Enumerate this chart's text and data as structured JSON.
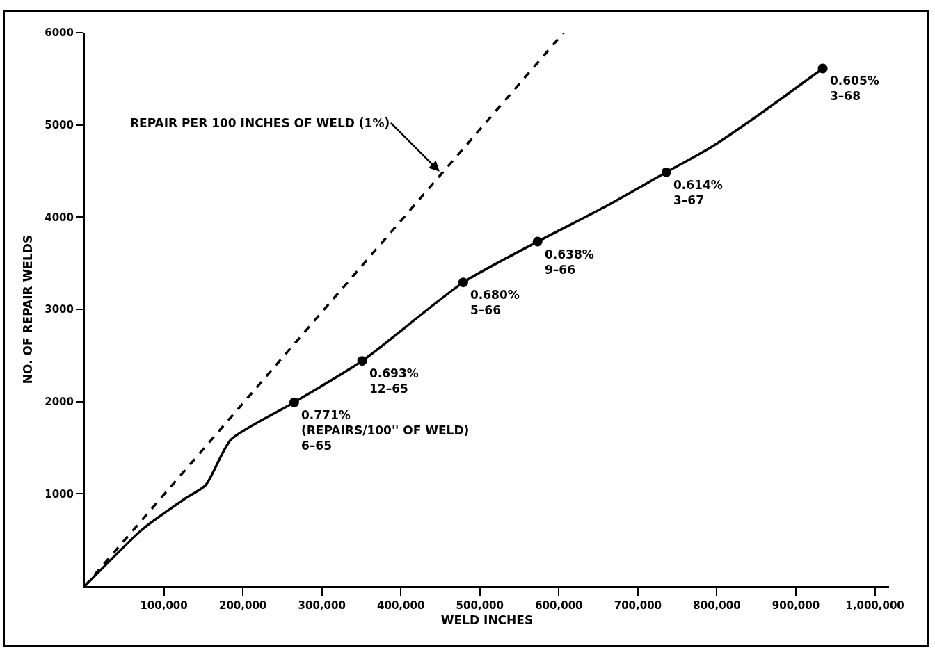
{
  "chart_data": {
    "type": "line",
    "xlabel": "WELD INCHES",
    "ylabel": "NO. OF REPAIR WELDS",
    "xlim": [
      0,
      1018000
    ],
    "ylim": [
      0,
      6000
    ],
    "xticks": [
      {
        "value": 100000,
        "label": "100,000"
      },
      {
        "value": 200000,
        "label": "200,000"
      },
      {
        "value": 300000,
        "label": "300,000"
      },
      {
        "value": 400000,
        "label": "400,000"
      },
      {
        "value": 500000,
        "label": "500,000"
      },
      {
        "value": 600000,
        "label": "600,000"
      },
      {
        "value": 700000,
        "label": "700,000"
      },
      {
        "value": 800000,
        "label": "800,000"
      },
      {
        "value": 900000,
        "label": "900,000"
      },
      {
        "value": 1000000,
        "label": "1,000,000"
      }
    ],
    "yticks": [
      1000,
      2000,
      3000,
      4000,
      5000,
      6000
    ],
    "grid": false,
    "series": [
      {
        "color": "#000000",
        "line_style": "dashed",
        "marker": "none",
        "x": [
          0,
          606000
        ],
        "values": [
          0,
          6000
        ]
      },
      {
        "color": "#000000",
        "line_style": "solid",
        "marker": "none",
        "x": [
          0,
          73000,
          126000,
          153000,
          185000,
          265000,
          351000,
          479000,
          573000,
          657000,
          736000,
          793000,
          852000,
          934000
        ],
        "values": [
          0,
          616,
          943,
          1095,
          1589,
          1992,
          2441,
          3293,
          3734,
          4106,
          4487,
          4760,
          5103,
          5612
        ]
      },
      {
        "type": "scatter",
        "color": "#000000",
        "marker": "circle",
        "x": [
          265000,
          351000,
          479000,
          573000,
          736000,
          934000
        ],
        "values": [
          1992,
          2441,
          3293,
          3734,
          4487,
          5612
        ]
      }
    ],
    "annotations": [
      {
        "text": "REPAIR PER 100 INCHES OF WELD (1%)",
        "x": 449000,
        "y": 4494
      },
      {
        "text": "0.771%\n(REPAIRS/100'' OF WELD)\n6–65",
        "x": 265000,
        "y": 1992
      },
      {
        "text": "0.693%\n12–65",
        "x": 351000,
        "y": 2441
      },
      {
        "text": "0.680%\n5–66",
        "x": 479000,
        "y": 3293
      },
      {
        "text": "0.638%\n9–66",
        "x": 573000,
        "y": 3734
      },
      {
        "text": "0.614%\n3–67",
        "x": 736000,
        "y": 4487
      },
      {
        "text": "0.605%\n3–68",
        "x": 934000,
        "y": 5612
      }
    ]
  }
}
